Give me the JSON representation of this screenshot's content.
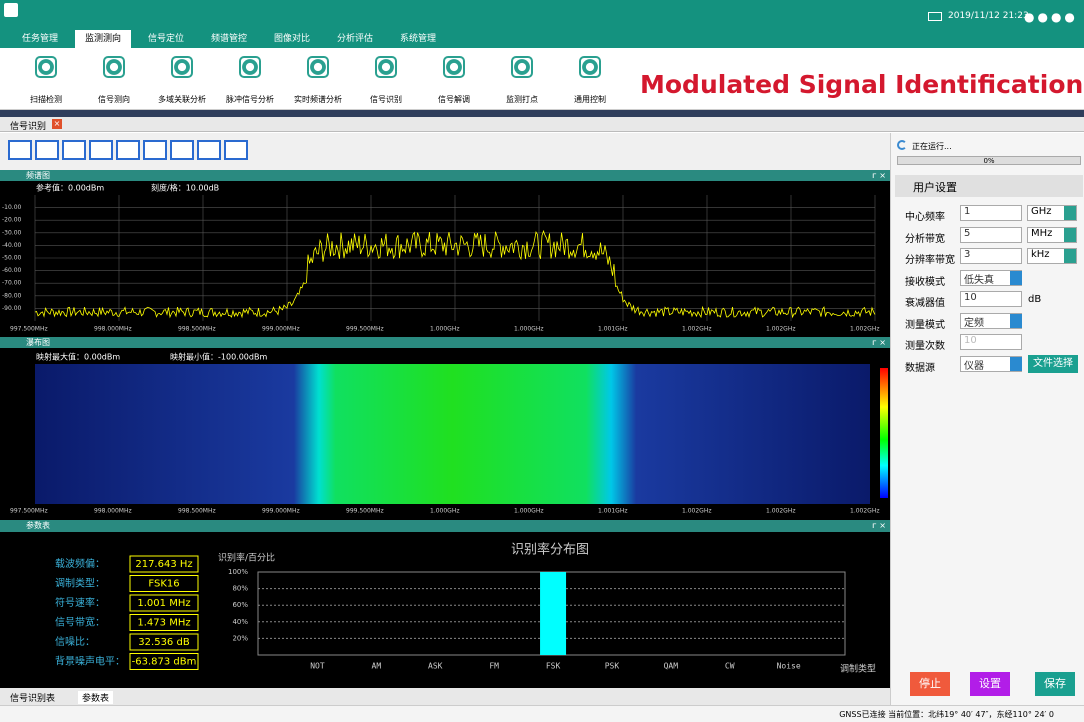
{
  "header": {
    "tabs": [
      "任务管理",
      "监测测向",
      "信号定位",
      "频谱管控",
      "图像对比",
      "分析评估",
      "系统管理"
    ],
    "datetime": "2019/11/12 21:23"
  },
  "toolbar": {
    "tools": [
      "扫描检测",
      "信号测向",
      "多域关联分析",
      "脉冲信号分析",
      "实时频谱分析",
      "信号识别",
      "信号解调",
      "监测打点",
      "通用控制"
    ],
    "banner": "Modulated Signal Identification"
  },
  "doc_tab": "信号识别",
  "spectrum": {
    "title": "频谱图",
    "reference": "参考值：0.00dBm",
    "scale": "刻度/格：10.00dB",
    "y_labels": [
      "-10.00",
      "-20.00",
      "-30.00",
      "-40.00",
      "-50.00",
      "-60.00",
      "-70.00",
      "-80.00",
      "-90.00"
    ],
    "x_labels": [
      "997.500MHz",
      "998.000MHz",
      "998.500MHz",
      "999.000MHz",
      "999.500MHz",
      "1.000GHz",
      "1.000GHz",
      "1.001GHz",
      "1.002GHz",
      "1.002GHz",
      "1.002GHz"
    ]
  },
  "waterfall": {
    "title": "瀑布图",
    "max": "映射最大值：0.00dBm",
    "min": "映射最小值：-100.00dBm",
    "x_labels": [
      "997.500MHz",
      "998.000MHz",
      "998.500MHz",
      "999.000MHz",
      "999.500MHz",
      "1.000GHz",
      "1.000GHz",
      "1.001GHz",
      "1.002GHz",
      "1.002GHz",
      "1.002GHz"
    ]
  },
  "params": {
    "title": "参数表",
    "rows": [
      [
        "载波频偏：",
        "217.643 Hz"
      ],
      [
        "调制类型：",
        "FSK16"
      ],
      [
        "符号速率：",
        "1.001 MHz"
      ],
      [
        "信号带宽：",
        "1.473 MHz"
      ],
      [
        "信噪比：",
        "32.536 dB"
      ],
      [
        "背景噪声电平：",
        "-63.873 dBm"
      ]
    ]
  },
  "chart_data": {
    "type": "bar",
    "title": "识别率分布图",
    "y_label": "识别率/百分比",
    "x_label": "调制类型",
    "categories": [
      "NOT",
      "AM",
      "ASK",
      "FM",
      "FSK",
      "PSK",
      "QAM",
      "CW",
      "Noise"
    ],
    "values": [
      0,
      0,
      0,
      0,
      100,
      0,
      0,
      0,
      0
    ],
    "color": "#00ffff",
    "ylim": [
      0,
      100
    ],
    "yticks": [
      {
        "value": 20,
        "label": "20%"
      },
      {
        "value": 40,
        "label": "40%"
      },
      {
        "value": 60,
        "label": "60%"
      },
      {
        "value": 80,
        "label": "80%"
      },
      {
        "value": 100,
        "label": "100%"
      }
    ],
    "grid": true
  },
  "bottom_tabs": [
    "信号识别表",
    "参数表"
  ],
  "panel": {
    "status": "正在运行...",
    "progress": "0%",
    "section": "用户设置",
    "fields": [
      [
        "中心频率",
        "1",
        "GHz"
      ],
      [
        "分析带宽",
        "5",
        "MHz"
      ],
      [
        "分辨率带宽",
        "3",
        "kHz"
      ],
      [
        "接收模式",
        "低失真"
      ],
      [
        "衰减器值",
        "10",
        "dB"
      ],
      [
        "测量模式",
        "定频"
      ],
      [
        "测量次数",
        "10"
      ],
      [
        "数据源",
        "仪器"
      ]
    ],
    "file_button": "文件选择",
    "buttons": [
      "停止",
      "设置",
      "保存"
    ]
  },
  "status_bar": "GNSS已连接 当前位置：北纬19° 40′ 47″，东经110° 24′ 0"
}
